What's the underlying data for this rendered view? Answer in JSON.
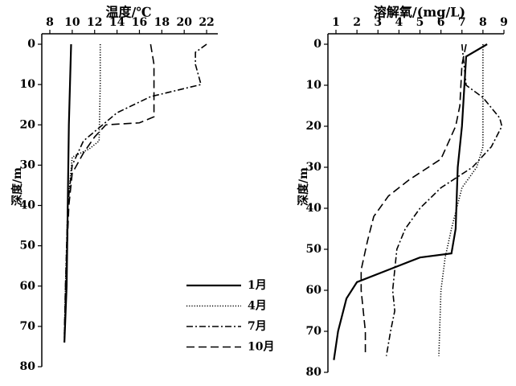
{
  "legend": [
    {
      "name": "1月",
      "dash": "none"
    },
    {
      "name": "4月",
      "dash": "1.2,2"
    },
    {
      "name": "7月",
      "dash": "8,3,2,3"
    },
    {
      "name": "10月",
      "dash": "10,5"
    }
  ],
  "chart_data": [
    {
      "type": "line",
      "title": "温度/℃",
      "y_label": "深度/m",
      "color": "#000000",
      "xlim": [
        8,
        23
      ],
      "xticks": [
        8,
        10,
        12,
        14,
        16,
        18,
        20,
        22
      ],
      "ylim": [
        0,
        80
      ],
      "yticks": [
        0,
        10,
        20,
        30,
        40,
        50,
        60,
        70,
        80
      ],
      "series": [
        {
          "x": [
            9.9,
            9.8,
            9.7,
            9.6,
            9.5,
            9.3
          ],
          "y": [
            0,
            10,
            20,
            40,
            60,
            74
          ]
        },
        {
          "x": [
            12.5,
            12.5,
            12.4,
            11.5,
            10.0,
            9.6,
            9.4,
            9.3
          ],
          "y": [
            0,
            10,
            24,
            26,
            28,
            40,
            60,
            72
          ]
        },
        {
          "x": [
            22,
            21,
            21,
            21.5,
            17,
            14,
            11,
            10,
            9.6,
            9.4,
            9.3
          ],
          "y": [
            0,
            2,
            5,
            10,
            13,
            17,
            24,
            30,
            40,
            60,
            73
          ]
        },
        {
          "x": [
            17,
            17.3,
            17.3,
            16,
            13,
            12,
            11,
            10,
            9.7,
            9.4,
            9.3
          ],
          "y": [
            0,
            5,
            18,
            19.5,
            20,
            23,
            27,
            32,
            40,
            60,
            72
          ]
        }
      ]
    },
    {
      "type": "line",
      "title": "溶解氧/(mg/L)",
      "y_label": "深度/m",
      "color": "#000000",
      "xlim": [
        1,
        9
      ],
      "xticks": [
        1,
        2,
        3,
        4,
        5,
        6,
        7,
        8,
        9
      ],
      "ylim": [
        0,
        80
      ],
      "yticks": [
        0,
        10,
        20,
        30,
        40,
        50,
        60,
        70,
        80
      ],
      "series": [
        {
          "x": [
            8.2,
            7.2,
            7.0,
            6.8,
            6.7,
            6.5,
            5.0,
            3.5,
            2.0,
            1.5,
            1.1,
            0.9
          ],
          "y": [
            0,
            3,
            20,
            30,
            45,
            51,
            52,
            55,
            58,
            62,
            70,
            77
          ]
        },
        {
          "x": [
            8.0,
            8.0,
            7.7,
            7.0,
            6.5,
            6.2,
            6.0,
            5.9
          ],
          "y": [
            0,
            25,
            30,
            35,
            45,
            52,
            60,
            76
          ]
        },
        {
          "x": [
            7.0,
            7.1,
            7.2,
            8.0,
            8.8,
            8.9,
            8.4,
            7.5,
            6.0,
            5.0,
            4.3,
            3.9,
            3.8,
            3.7,
            3.8,
            3.6,
            3.4
          ],
          "y": [
            0,
            5,
            10,
            13,
            18,
            20,
            25,
            30,
            35,
            40,
            45,
            50,
            55,
            60,
            65,
            70,
            76
          ]
        },
        {
          "x": [
            7.2,
            7.0,
            6.9,
            6.7,
            6.0,
            4.5,
            3.5,
            2.8,
            2.5,
            2.2,
            2.2,
            2.3,
            2.4,
            2.4
          ],
          "y": [
            0,
            5,
            15,
            20,
            28,
            33,
            37,
            42,
            48,
            55,
            60,
            65,
            70,
            76
          ]
        }
      ]
    }
  ]
}
